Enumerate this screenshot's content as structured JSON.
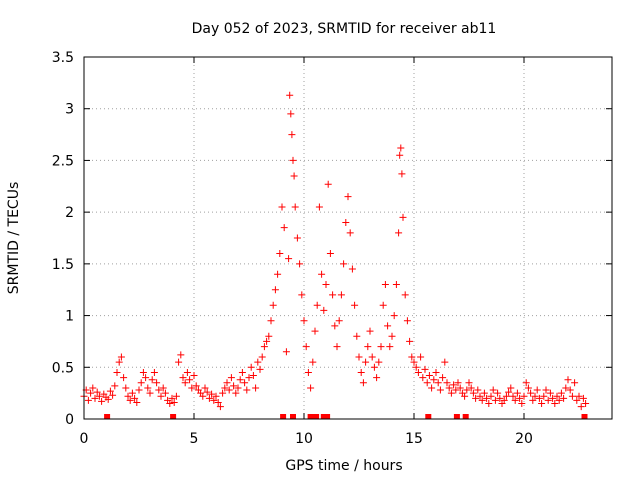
{
  "chart_data": {
    "type": "scatter",
    "title": "Day 052 of 2023, SRMTID for receiver ab11",
    "xlabel": "GPS time / hours",
    "ylabel": "SRMTID / TECUs",
    "xlim": [
      0,
      24
    ],
    "ylim": [
      0,
      3.5
    ],
    "xticks": [
      0,
      5,
      10,
      15,
      20
    ],
    "xtick_labels": [
      "0",
      "5",
      "10",
      "15",
      "20"
    ],
    "yticks": [
      0,
      0.5,
      1,
      1.5,
      2,
      2.5,
      3,
      3.5
    ],
    "ytick_labels": [
      "0",
      "0.5",
      "1",
      "1.5",
      "2",
      "2.5",
      "3",
      "3.5"
    ],
    "grid": true,
    "marker": "+",
    "series": [
      {
        "name": "SRMTID",
        "color": "#ff0000",
        "points": [
          [
            0.0,
            0.22
          ],
          [
            0.1,
            0.28
          ],
          [
            0.2,
            0.18
          ],
          [
            0.3,
            0.25
          ],
          [
            0.4,
            0.3
          ],
          [
            0.5,
            0.2
          ],
          [
            0.6,
            0.26
          ],
          [
            0.7,
            0.22
          ],
          [
            0.8,
            0.17
          ],
          [
            0.9,
            0.24
          ],
          [
            1.0,
            0.21
          ],
          [
            1.1,
            0.19
          ],
          [
            1.2,
            0.27
          ],
          [
            1.3,
            0.23
          ],
          [
            1.4,
            0.32
          ],
          [
            1.5,
            0.45
          ],
          [
            1.6,
            0.55
          ],
          [
            1.7,
            0.6
          ],
          [
            1.8,
            0.4
          ],
          [
            1.9,
            0.3
          ],
          [
            2.0,
            0.22
          ],
          [
            2.1,
            0.18
          ],
          [
            2.2,
            0.25
          ],
          [
            2.3,
            0.2
          ],
          [
            2.4,
            0.16
          ],
          [
            2.5,
            0.28
          ],
          [
            2.6,
            0.35
          ],
          [
            2.7,
            0.45
          ],
          [
            2.8,
            0.4
          ],
          [
            2.9,
            0.3
          ],
          [
            3.0,
            0.25
          ],
          [
            3.1,
            0.38
          ],
          [
            3.2,
            0.45
          ],
          [
            3.3,
            0.35
          ],
          [
            3.4,
            0.28
          ],
          [
            3.5,
            0.22
          ],
          [
            3.6,
            0.3
          ],
          [
            3.7,
            0.25
          ],
          [
            3.8,
            0.18
          ],
          [
            3.9,
            0.15
          ],
          [
            4.0,
            0.2
          ],
          [
            4.1,
            0.16
          ],
          [
            4.2,
            0.22
          ],
          [
            4.3,
            0.55
          ],
          [
            4.4,
            0.62
          ],
          [
            4.5,
            0.4
          ],
          [
            4.6,
            0.35
          ],
          [
            4.7,
            0.45
          ],
          [
            4.8,
            0.38
          ],
          [
            4.9,
            0.3
          ],
          [
            5.0,
            0.42
          ],
          [
            5.1,
            0.32
          ],
          [
            5.2,
            0.28
          ],
          [
            5.3,
            0.25
          ],
          [
            5.4,
            0.22
          ],
          [
            5.5,
            0.3
          ],
          [
            5.6,
            0.26
          ],
          [
            5.7,
            0.2
          ],
          [
            5.8,
            0.24
          ],
          [
            5.9,
            0.18
          ],
          [
            6.0,
            0.22
          ],
          [
            6.1,
            0.16
          ],
          [
            6.2,
            0.12
          ],
          [
            6.3,
            0.25
          ],
          [
            6.4,
            0.3
          ],
          [
            6.5,
            0.35
          ],
          [
            6.6,
            0.28
          ],
          [
            6.7,
            0.4
          ],
          [
            6.8,
            0.32
          ],
          [
            6.9,
            0.25
          ],
          [
            7.0,
            0.3
          ],
          [
            7.1,
            0.38
          ],
          [
            7.2,
            0.45
          ],
          [
            7.3,
            0.35
          ],
          [
            7.4,
            0.28
          ],
          [
            7.5,
            0.4
          ],
          [
            7.6,
            0.5
          ],
          [
            7.7,
            0.42
          ],
          [
            7.8,
            0.3
          ],
          [
            7.9,
            0.55
          ],
          [
            8.0,
            0.48
          ],
          [
            8.1,
            0.6
          ],
          [
            8.2,
            0.7
          ],
          [
            8.3,
            0.75
          ],
          [
            8.4,
            0.8
          ],
          [
            8.5,
            0.95
          ],
          [
            8.6,
            1.1
          ],
          [
            8.7,
            1.25
          ],
          [
            8.8,
            1.4
          ],
          [
            8.9,
            1.6
          ],
          [
            9.0,
            2.05
          ],
          [
            9.1,
            1.85
          ],
          [
            9.2,
            0.65
          ],
          [
            9.3,
            1.55
          ],
          [
            9.35,
            3.13
          ],
          [
            9.4,
            2.95
          ],
          [
            9.45,
            2.75
          ],
          [
            9.5,
            2.5
          ],
          [
            9.55,
            2.35
          ],
          [
            9.6,
            2.05
          ],
          [
            9.7,
            1.75
          ],
          [
            9.8,
            1.5
          ],
          [
            9.9,
            1.2
          ],
          [
            10.0,
            0.95
          ],
          [
            10.1,
            0.7
          ],
          [
            10.2,
            0.45
          ],
          [
            10.3,
            0.3
          ],
          [
            10.4,
            0.55
          ],
          [
            10.5,
            0.85
          ],
          [
            10.6,
            1.1
          ],
          [
            10.7,
            2.05
          ],
          [
            10.8,
            1.4
          ],
          [
            10.9,
            1.05
          ],
          [
            11.0,
            1.3
          ],
          [
            11.1,
            2.27
          ],
          [
            11.2,
            1.6
          ],
          [
            11.3,
            1.2
          ],
          [
            11.4,
            0.9
          ],
          [
            11.5,
            0.7
          ],
          [
            11.6,
            0.95
          ],
          [
            11.7,
            1.2
          ],
          [
            11.8,
            1.5
          ],
          [
            11.9,
            1.9
          ],
          [
            12.0,
            2.15
          ],
          [
            12.1,
            1.8
          ],
          [
            12.2,
            1.45
          ],
          [
            12.3,
            1.1
          ],
          [
            12.4,
            0.8
          ],
          [
            12.5,
            0.6
          ],
          [
            12.6,
            0.45
          ],
          [
            12.7,
            0.35
          ],
          [
            12.8,
            0.55
          ],
          [
            12.9,
            0.7
          ],
          [
            13.0,
            0.85
          ],
          [
            13.1,
            0.6
          ],
          [
            13.2,
            0.5
          ],
          [
            13.3,
            0.4
          ],
          [
            13.4,
            0.55
          ],
          [
            13.5,
            0.7
          ],
          [
            13.6,
            1.1
          ],
          [
            13.7,
            1.3
          ],
          [
            13.8,
            0.9
          ],
          [
            13.9,
            0.7
          ],
          [
            14.0,
            0.8
          ],
          [
            14.1,
            1.0
          ],
          [
            14.2,
            1.3
          ],
          [
            14.3,
            1.8
          ],
          [
            14.35,
            2.55
          ],
          [
            14.4,
            2.62
          ],
          [
            14.45,
            2.37
          ],
          [
            14.5,
            1.95
          ],
          [
            14.6,
            1.2
          ],
          [
            14.7,
            0.95
          ],
          [
            14.8,
            0.75
          ],
          [
            14.9,
            0.6
          ],
          [
            15.0,
            0.55
          ],
          [
            15.1,
            0.5
          ],
          [
            15.2,
            0.45
          ],
          [
            15.3,
            0.6
          ],
          [
            15.4,
            0.4
          ],
          [
            15.5,
            0.48
          ],
          [
            15.6,
            0.35
          ],
          [
            15.7,
            0.42
          ],
          [
            15.8,
            0.3
          ],
          [
            15.9,
            0.38
          ],
          [
            16.0,
            0.45
          ],
          [
            16.1,
            0.35
          ],
          [
            16.2,
            0.28
          ],
          [
            16.3,
            0.4
          ],
          [
            16.4,
            0.55
          ],
          [
            16.5,
            0.35
          ],
          [
            16.6,
            0.3
          ],
          [
            16.7,
            0.25
          ],
          [
            16.8,
            0.33
          ],
          [
            16.9,
            0.28
          ],
          [
            17.0,
            0.35
          ],
          [
            17.1,
            0.3
          ],
          [
            17.2,
            0.25
          ],
          [
            17.3,
            0.22
          ],
          [
            17.4,
            0.28
          ],
          [
            17.5,
            0.35
          ],
          [
            17.6,
            0.3
          ],
          [
            17.7,
            0.25
          ],
          [
            17.8,
            0.2
          ],
          [
            17.9,
            0.28
          ],
          [
            18.0,
            0.22
          ],
          [
            18.1,
            0.18
          ],
          [
            18.2,
            0.25
          ],
          [
            18.3,
            0.2
          ],
          [
            18.4,
            0.15
          ],
          [
            18.5,
            0.22
          ],
          [
            18.6,
            0.28
          ],
          [
            18.7,
            0.18
          ],
          [
            18.8,
            0.25
          ],
          [
            18.9,
            0.2
          ],
          [
            19.0,
            0.15
          ],
          [
            19.1,
            0.18
          ],
          [
            19.2,
            0.22
          ],
          [
            19.3,
            0.26
          ],
          [
            19.4,
            0.3
          ],
          [
            19.5,
            0.22
          ],
          [
            19.6,
            0.18
          ],
          [
            19.7,
            0.25
          ],
          [
            19.8,
            0.2
          ],
          [
            19.9,
            0.15
          ],
          [
            20.0,
            0.22
          ],
          [
            20.1,
            0.35
          ],
          [
            20.2,
            0.3
          ],
          [
            20.3,
            0.25
          ],
          [
            20.4,
            0.18
          ],
          [
            20.5,
            0.22
          ],
          [
            20.6,
            0.28
          ],
          [
            20.7,
            0.2
          ],
          [
            20.8,
            0.15
          ],
          [
            20.9,
            0.22
          ],
          [
            21.0,
            0.28
          ],
          [
            21.1,
            0.18
          ],
          [
            21.2,
            0.25
          ],
          [
            21.3,
            0.2
          ],
          [
            21.4,
            0.15
          ],
          [
            21.5,
            0.22
          ],
          [
            21.6,
            0.18
          ],
          [
            21.7,
            0.25
          ],
          [
            21.8,
            0.2
          ],
          [
            21.9,
            0.3
          ],
          [
            22.0,
            0.38
          ],
          [
            22.1,
            0.28
          ],
          [
            22.2,
            0.22
          ],
          [
            22.3,
            0.35
          ],
          [
            22.4,
            0.18
          ],
          [
            22.5,
            0.22
          ],
          [
            22.6,
            0.12
          ],
          [
            22.7,
            0.2
          ],
          [
            22.8,
            0.15
          ]
        ],
        "zero_points": [
          1.05,
          4.05,
          9.05,
          9.5,
          10.3,
          10.55,
          10.9,
          11.05,
          15.65,
          16.95,
          17.35,
          22.75
        ]
      }
    ]
  }
}
